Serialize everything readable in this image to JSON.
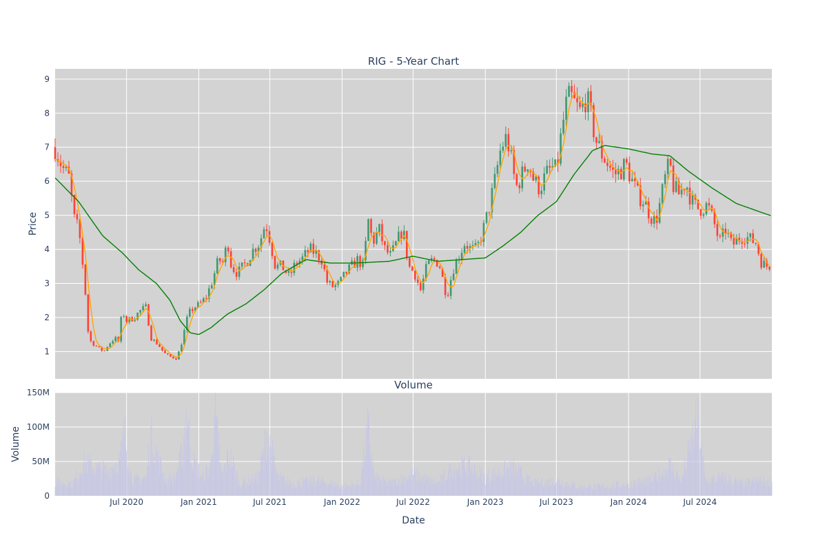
{
  "chart_data": [
    {
      "type": "candlestick",
      "title": "RIG - 5-Year Chart",
      "ylabel": "Price",
      "ylim": [
        0.2,
        9.3
      ],
      "yticks": [
        1,
        2,
        3,
        4,
        5,
        6,
        7,
        8,
        9
      ],
      "grid": true,
      "legend": "none",
      "colors": {
        "increasing": "#3d9970",
        "decreasing": "#ff4136",
        "plot_bg": "#d3d3d3",
        "grid": "#ffffff",
        "ma_short": "#ffa500",
        "ma_long": "#008000"
      },
      "x_range": [
        "2020-01-01",
        "2024-12-31"
      ],
      "x_ticks": [
        {
          "date": "2020-07-01",
          "label": "Jul 2020"
        },
        {
          "date": "2021-01-01",
          "label": "Jan 2021"
        },
        {
          "date": "2021-07-01",
          "label": "Jul 2021"
        },
        {
          "date": "2022-01-01",
          "label": "Jan 2022"
        },
        {
          "date": "2022-07-01",
          "label": "Jul 2022"
        },
        {
          "date": "2023-01-01",
          "label": "Jan 2023"
        },
        {
          "date": "2023-07-01",
          "label": "Jul 2023"
        },
        {
          "date": "2024-01-01",
          "label": "Jan 2024"
        },
        {
          "date": "2024-07-01",
          "label": "Jul 2024"
        }
      ],
      "close_points": [
        [
          "2020-01-01",
          7.0
        ],
        [
          "2020-01-20",
          6.4
        ],
        [
          "2020-02-05",
          6.1
        ],
        [
          "2020-02-20",
          4.8
        ],
        [
          "2020-03-01",
          4.6
        ],
        [
          "2020-03-15",
          3.2
        ],
        [
          "2020-03-25",
          1.6
        ],
        [
          "2020-04-01",
          1.3
        ],
        [
          "2020-04-20",
          1.1
        ],
        [
          "2020-05-05",
          1.0
        ],
        [
          "2020-05-15",
          1.2
        ],
        [
          "2020-06-01",
          1.4
        ],
        [
          "2020-06-10",
          1.3
        ],
        [
          "2020-06-20",
          2.2
        ],
        [
          "2020-07-01",
          1.9
        ],
        [
          "2020-07-20",
          2.0
        ],
        [
          "2020-08-05",
          2.2
        ],
        [
          "2020-08-20",
          2.3
        ],
        [
          "2020-09-01",
          1.4
        ],
        [
          "2020-09-20",
          1.2
        ],
        [
          "2020-10-05",
          0.95
        ],
        [
          "2020-10-20",
          0.85
        ],
        [
          "2020-11-05",
          0.8
        ],
        [
          "2020-11-15",
          1.1
        ],
        [
          "2020-11-25",
          1.6
        ],
        [
          "2020-12-05",
          2.1
        ],
        [
          "2020-12-20",
          2.3
        ],
        [
          "2021-01-05",
          2.4
        ],
        [
          "2021-01-20",
          2.6
        ],
        [
          "2021-02-05",
          3.1
        ],
        [
          "2021-02-20",
          3.7
        ],
        [
          "2021-03-05",
          3.6
        ],
        [
          "2021-03-15",
          4.3
        ],
        [
          "2021-03-25",
          3.5
        ],
        [
          "2021-04-10",
          3.3
        ],
        [
          "2021-05-01",
          3.6
        ],
        [
          "2021-05-20",
          4.0
        ],
        [
          "2021-06-05",
          4.2
        ],
        [
          "2021-06-20",
          4.8
        ],
        [
          "2021-07-01",
          4.3
        ],
        [
          "2021-07-15",
          3.5
        ],
        [
          "2021-08-01",
          3.5
        ],
        [
          "2021-08-20",
          3.2
        ],
        [
          "2021-09-05",
          3.6
        ],
        [
          "2021-09-20",
          3.7
        ],
        [
          "2021-10-10",
          4.0
        ],
        [
          "2021-10-25",
          3.9
        ],
        [
          "2021-11-10",
          3.7
        ],
        [
          "2021-11-25",
          3.0
        ],
        [
          "2021-12-10",
          2.9
        ],
        [
          "2021-12-25",
          3.0
        ],
        [
          "2022-01-10",
          3.3
        ],
        [
          "2022-01-25",
          3.5
        ],
        [
          "2022-02-10",
          3.7
        ],
        [
          "2022-02-25",
          3.5
        ],
        [
          "2022-03-08",
          4.9
        ],
        [
          "2022-03-20",
          4.2
        ],
        [
          "2022-04-05",
          4.6
        ],
        [
          "2022-04-20",
          4.0
        ],
        [
          "2022-05-05",
          3.8
        ],
        [
          "2022-05-20",
          4.2
        ],
        [
          "2022-06-05",
          4.6
        ],
        [
          "2022-06-20",
          3.5
        ],
        [
          "2022-07-05",
          3.3
        ],
        [
          "2022-07-20",
          2.8
        ],
        [
          "2022-08-05",
          3.5
        ],
        [
          "2022-08-20",
          3.7
        ],
        [
          "2022-09-05",
          3.6
        ],
        [
          "2022-09-25",
          2.6
        ],
        [
          "2022-10-10",
          3.4
        ],
        [
          "2022-10-25",
          3.8
        ],
        [
          "2022-11-10",
          4.2
        ],
        [
          "2022-11-25",
          4.0
        ],
        [
          "2022-12-10",
          4.0
        ],
        [
          "2022-12-25",
          4.5
        ],
        [
          "2023-01-10",
          5.2
        ],
        [
          "2023-01-25",
          6.0
        ],
        [
          "2023-02-10",
          7.0
        ],
        [
          "2023-02-25",
          7.3
        ],
        [
          "2023-03-10",
          6.5
        ],
        [
          "2023-03-20",
          5.8
        ],
        [
          "2023-04-05",
          6.2
        ],
        [
          "2023-04-20",
          6.6
        ],
        [
          "2023-05-05",
          6.0
        ],
        [
          "2023-05-20",
          5.8
        ],
        [
          "2023-06-05",
          6.2
        ],
        [
          "2023-06-20",
          6.4
        ],
        [
          "2023-07-01",
          6.3
        ],
        [
          "2023-07-15",
          7.5
        ],
        [
          "2023-07-25",
          8.2
        ],
        [
          "2023-08-05",
          8.5
        ],
        [
          "2023-08-20",
          8.2
        ],
        [
          "2023-09-01",
          8.0
        ],
        [
          "2023-09-15",
          8.5
        ],
        [
          "2023-09-25",
          8.0
        ],
        [
          "2023-10-10",
          7.2
        ],
        [
          "2023-10-25",
          6.8
        ],
        [
          "2023-11-10",
          6.5
        ],
        [
          "2023-11-25",
          6.2
        ],
        [
          "2023-12-10",
          6.3
        ],
        [
          "2023-12-25",
          6.5
        ],
        [
          "2024-01-10",
          6.0
        ],
        [
          "2024-01-25",
          5.6
        ],
        [
          "2024-02-10",
          5.4
        ],
        [
          "2024-02-25",
          5.0
        ],
        [
          "2024-03-10",
          4.8
        ],
        [
          "2024-03-20",
          5.3
        ],
        [
          "2024-04-05",
          6.2
        ],
        [
          "2024-04-15",
          6.5
        ],
        [
          "2024-04-25",
          5.8
        ],
        [
          "2024-05-10",
          5.6
        ],
        [
          "2024-05-25",
          6.0
        ],
        [
          "2024-06-10",
          5.4
        ],
        [
          "2024-06-25",
          5.2
        ],
        [
          "2024-07-05",
          5.2
        ],
        [
          "2024-07-20",
          5.3
        ],
        [
          "2024-08-05",
          4.8
        ],
        [
          "2024-08-20",
          4.2
        ],
        [
          "2024-09-05",
          4.6
        ],
        [
          "2024-09-20",
          4.1
        ],
        [
          "2024-10-05",
          4.3
        ],
        [
          "2024-10-20",
          4.4
        ],
        [
          "2024-11-05",
          4.3
        ],
        [
          "2024-11-20",
          4.2
        ],
        [
          "2024-12-05",
          3.6
        ],
        [
          "2024-12-20",
          3.5
        ],
        [
          "2024-12-31",
          3.6
        ]
      ],
      "ma_long_points": [
        [
          "2020-01-01",
          6.1
        ],
        [
          "2020-03-01",
          5.4
        ],
        [
          "2020-05-01",
          4.4
        ],
        [
          "2020-06-20",
          3.9
        ],
        [
          "2020-08-01",
          3.4
        ],
        [
          "2020-09-15",
          3.0
        ],
        [
          "2020-10-20",
          2.5
        ],
        [
          "2020-11-15",
          1.9
        ],
        [
          "2020-12-10",
          1.55
        ],
        [
          "2021-01-01",
          1.5
        ],
        [
          "2021-02-01",
          1.7
        ],
        [
          "2021-03-15",
          2.1
        ],
        [
          "2021-05-01",
          2.4
        ],
        [
          "2021-06-15",
          2.8
        ],
        [
          "2021-08-01",
          3.3
        ],
        [
          "2021-10-01",
          3.7
        ],
        [
          "2021-12-01",
          3.6
        ],
        [
          "2022-02-01",
          3.6
        ],
        [
          "2022-05-01",
          3.65
        ],
        [
          "2022-07-01",
          3.8
        ],
        [
          "2022-09-01",
          3.65
        ],
        [
          "2022-11-01",
          3.7
        ],
        [
          "2023-01-01",
          3.75
        ],
        [
          "2023-02-15",
          4.1
        ],
        [
          "2023-04-01",
          4.5
        ],
        [
          "2023-05-15",
          5.0
        ],
        [
          "2023-07-01",
          5.4
        ],
        [
          "2023-08-15",
          6.2
        ],
        [
          "2023-10-01",
          6.9
        ],
        [
          "2023-11-01",
          7.05
        ],
        [
          "2024-01-01",
          6.95
        ],
        [
          "2024-03-01",
          6.8
        ],
        [
          "2024-04-15",
          6.75
        ],
        [
          "2024-06-01",
          6.3
        ],
        [
          "2024-08-01",
          5.8
        ],
        [
          "2024-10-01",
          5.35
        ],
        [
          "2024-12-01",
          5.1
        ],
        [
          "2024-12-31",
          4.98
        ]
      ]
    },
    {
      "type": "bar",
      "title": "Volume",
      "xlabel": "Date",
      "ylabel": "Volume",
      "ylim": [
        0,
        150000000
      ],
      "yticks": [
        {
          "value": 0,
          "label": "0"
        },
        {
          "value": 50000000,
          "label": "50M"
        },
        {
          "value": 100000000,
          "label": "100M"
        },
        {
          "value": 150000000,
          "label": "150M"
        }
      ],
      "bar_color": "#c6c6e8",
      "volume_points": [
        [
          "2020-01-01",
          22000000
        ],
        [
          "2020-02-15",
          20000000
        ],
        [
          "2020-03-15",
          55000000
        ],
        [
          "2020-04-15",
          45000000
        ],
        [
          "2020-05-15",
          40000000
        ],
        [
          "2020-06-15",
          60000000
        ],
        [
          "2020-06-25",
          105000000
        ],
        [
          "2020-07-15",
          25000000
        ],
        [
          "2020-08-20",
          30000000
        ],
        [
          "2020-09-01",
          100000000
        ],
        [
          "2020-09-20",
          60000000
        ],
        [
          "2020-10-10",
          25000000
        ],
        [
          "2020-11-01",
          30000000
        ],
        [
          "2020-11-20",
          70000000
        ],
        [
          "2020-12-01",
          140000000
        ],
        [
          "2020-12-15",
          60000000
        ],
        [
          "2021-01-10",
          30000000
        ],
        [
          "2021-02-01",
          50000000
        ],
        [
          "2021-02-10",
          138000000
        ],
        [
          "2021-03-01",
          30000000
        ],
        [
          "2021-03-20",
          70000000
        ],
        [
          "2021-04-15",
          20000000
        ],
        [
          "2021-06-01",
          30000000
        ],
        [
          "2021-06-25",
          105000000
        ],
        [
          "2021-07-20",
          30000000
        ],
        [
          "2021-09-01",
          20000000
        ],
        [
          "2021-11-01",
          25000000
        ],
        [
          "2022-01-01",
          15000000
        ],
        [
          "2022-02-15",
          20000000
        ],
        [
          "2022-03-08",
          112000000
        ],
        [
          "2022-03-25",
          30000000
        ],
        [
          "2022-05-01",
          20000000
        ],
        [
          "2022-07-01",
          35000000
        ],
        [
          "2022-09-01",
          20000000
        ],
        [
          "2022-10-10",
          45000000
        ],
        [
          "2022-11-15",
          50000000
        ],
        [
          "2023-01-01",
          30000000
        ],
        [
          "2023-02-15",
          40000000
        ],
        [
          "2023-03-15",
          45000000
        ],
        [
          "2023-05-01",
          20000000
        ],
        [
          "2023-07-01",
          25000000
        ],
        [
          "2023-09-01",
          15000000
        ],
        [
          "2023-11-01",
          15000000
        ],
        [
          "2024-01-01",
          20000000
        ],
        [
          "2024-03-01",
          25000000
        ],
        [
          "2024-04-15",
          50000000
        ],
        [
          "2024-05-15",
          25000000
        ],
        [
          "2024-06-25",
          125000000
        ],
        [
          "2024-07-15",
          25000000
        ],
        [
          "2024-09-01",
          30000000
        ],
        [
          "2024-10-15",
          20000000
        ],
        [
          "2024-12-01",
          25000000
        ],
        [
          "2024-12-31",
          22000000
        ]
      ]
    }
  ]
}
